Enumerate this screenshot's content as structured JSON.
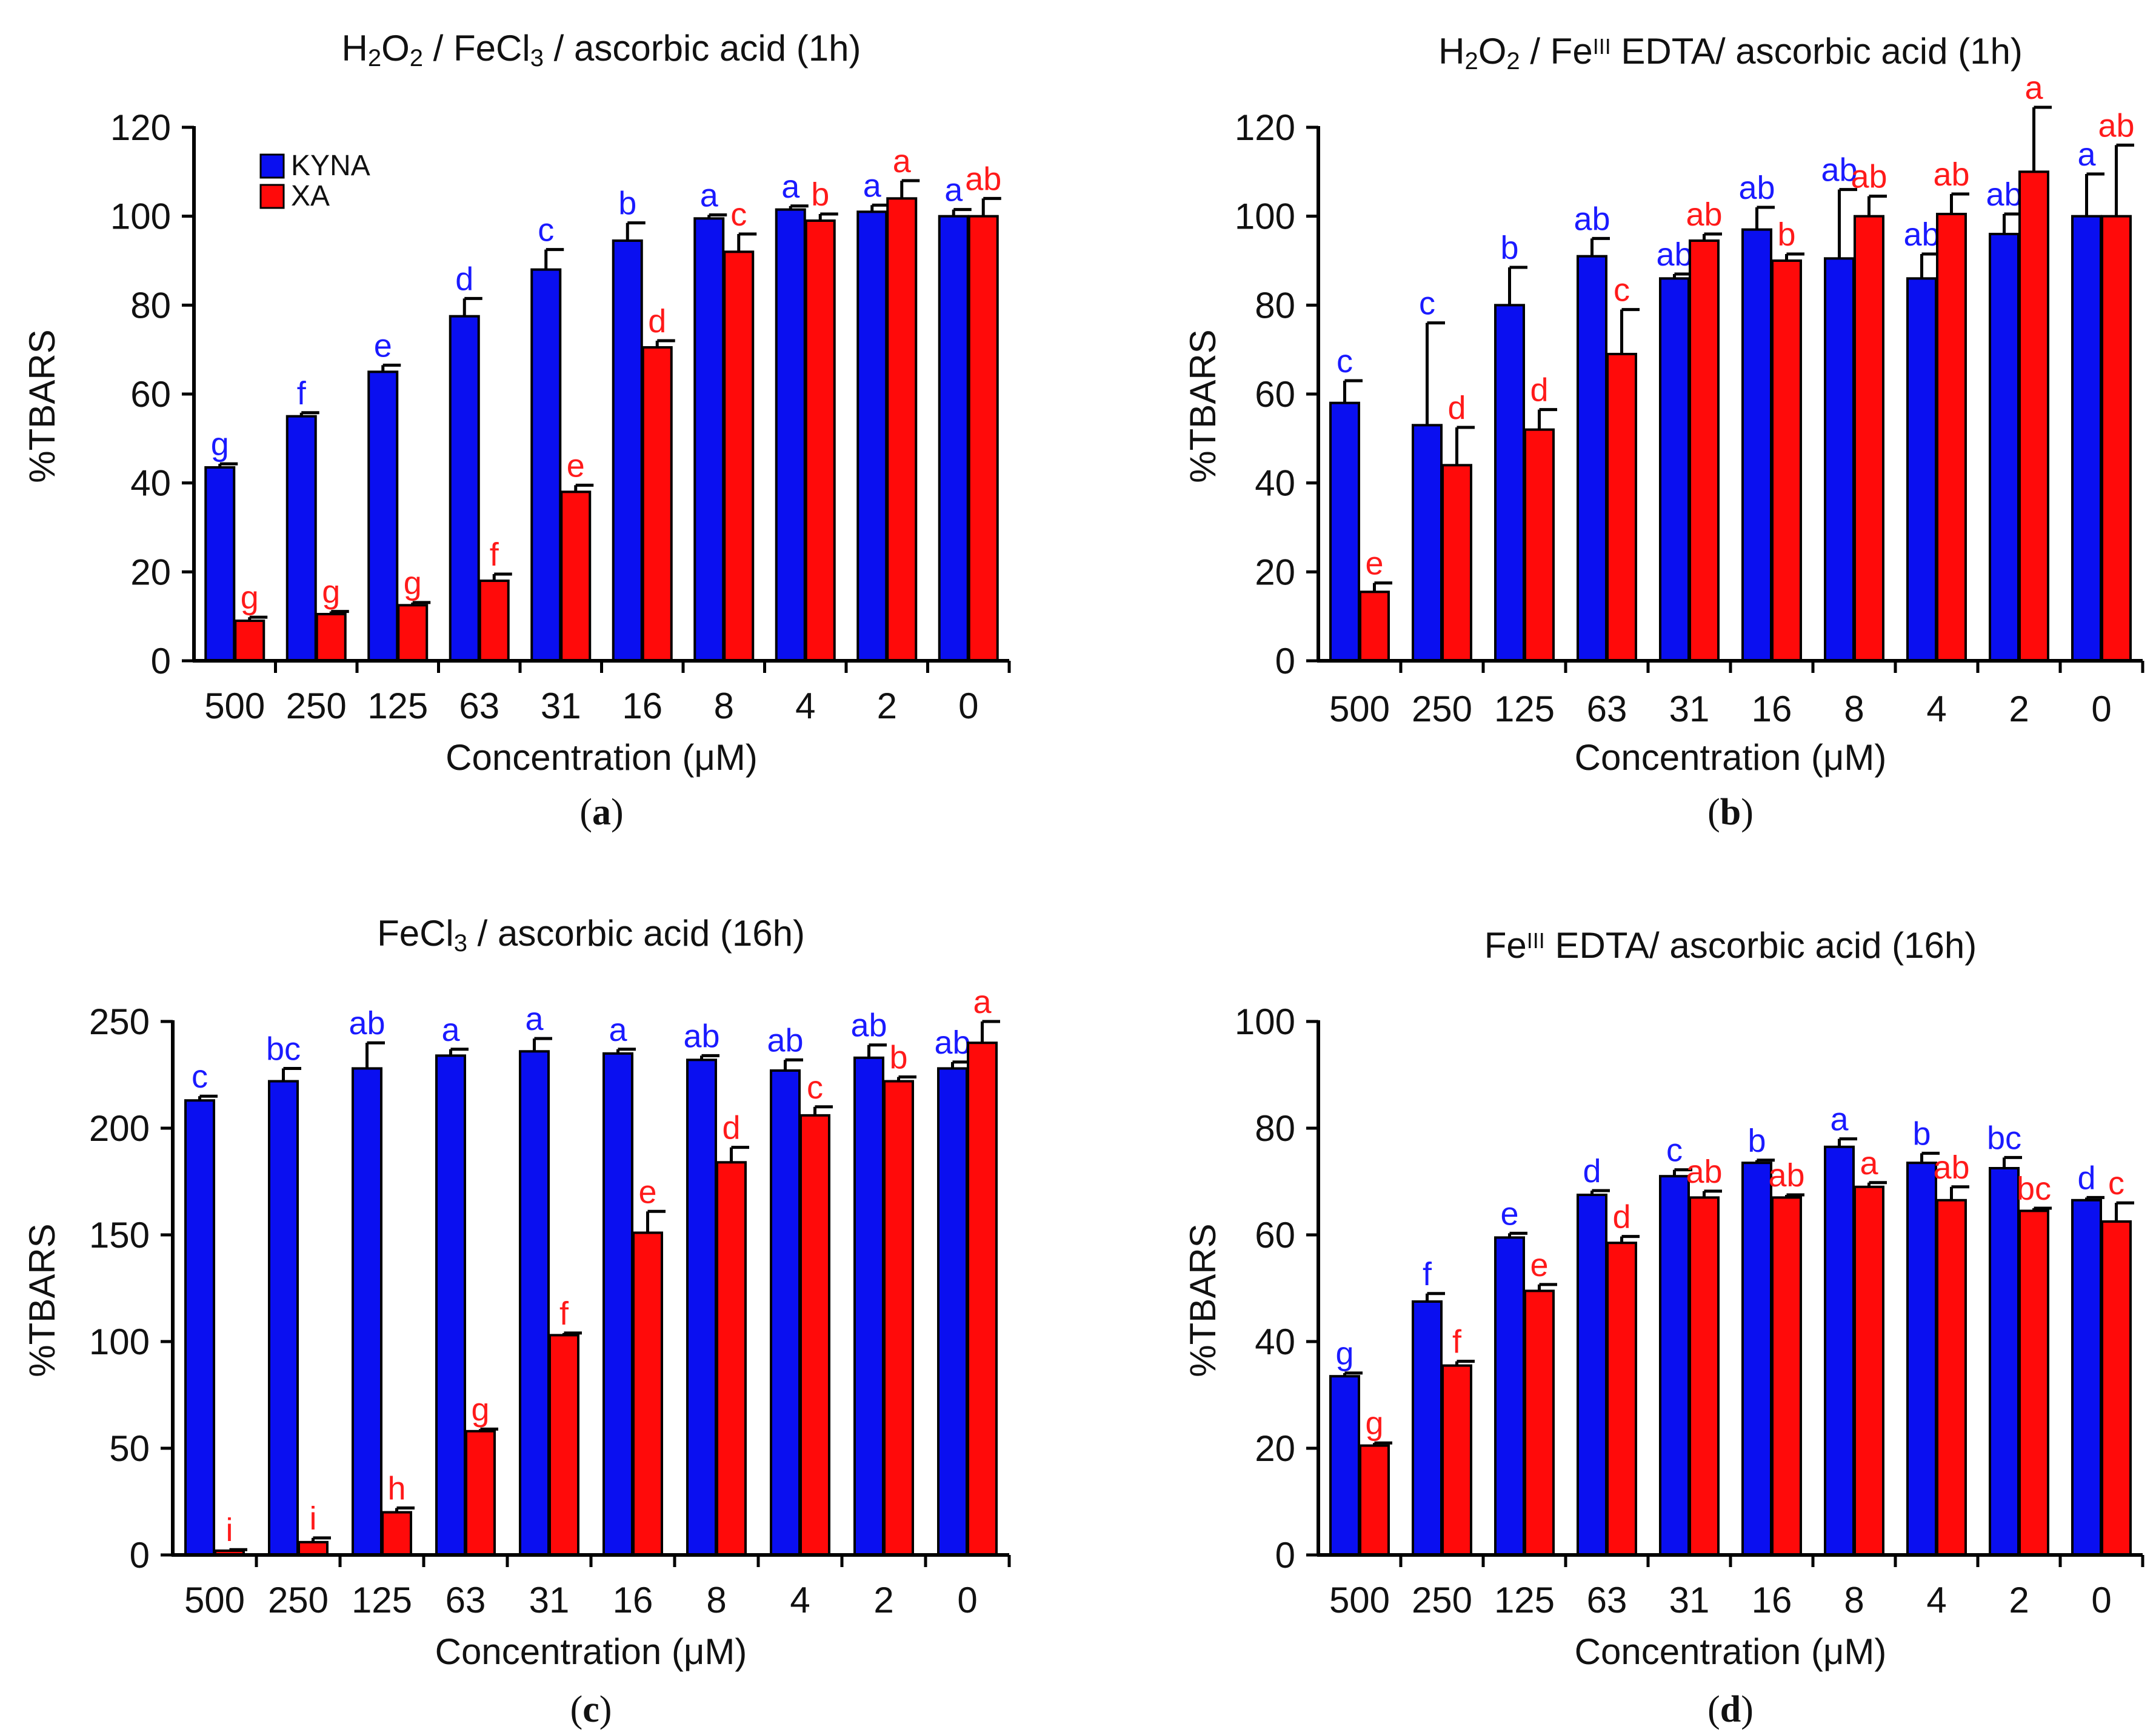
{
  "figure": {
    "colors": {
      "kyna": "#0a0ff0",
      "xa": "#ff0a0a",
      "axis": "#000000"
    },
    "legend": {
      "kyna": "KYNA",
      "xa": "XA"
    }
  },
  "chart_data": [
    {
      "type": "bar",
      "panel_label": "a",
      "title": {
        "parts": [
          {
            "t": "H"
          },
          {
            "t": "2",
            "sub": true
          },
          {
            "t": "O"
          },
          {
            "t": "2",
            "sub": true
          },
          {
            "t": " / FeCl"
          },
          {
            "t": "3",
            "sub": true
          },
          {
            "t": " / ascorbic acid (1h)"
          }
        ]
      },
      "xlabel": "Concentration (μM)",
      "ylabel": "%TBARS",
      "ylim": [
        0,
        120
      ],
      "yticks": [
        0,
        20,
        40,
        60,
        80,
        100,
        120
      ],
      "legend_shown": true,
      "categories": [
        "500",
        "250",
        "125",
        "63",
        "31",
        "16",
        "8",
        "4",
        "2",
        "0"
      ],
      "series": [
        {
          "name": "KYNA",
          "values": [
            43.5,
            55,
            65,
            77.5,
            88,
            94.5,
            99.5,
            101.5,
            101,
            100
          ],
          "errors": [
            0.8,
            0.8,
            1.5,
            4,
            4.5,
            4,
            0.8,
            0.8,
            1.5,
            1.5
          ],
          "letters": [
            "g",
            "f",
            "e",
            "d",
            "c",
            "b",
            "a",
            "a",
            "a",
            "a"
          ]
        },
        {
          "name": "XA",
          "values": [
            9,
            10.5,
            12.5,
            18,
            38,
            70.5,
            92,
            99,
            104,
            100
          ],
          "errors": [
            0.8,
            0.6,
            0.6,
            1.5,
            1.5,
            1.5,
            4,
            1.5,
            4,
            4
          ],
          "letters": [
            "g",
            "g",
            "g",
            "f",
            "e",
            "d",
            "c",
            "b",
            "a",
            "ab"
          ]
        }
      ]
    },
    {
      "type": "bar",
      "panel_label": "b",
      "title": {
        "parts": [
          {
            "t": "H"
          },
          {
            "t": "2",
            "sub": true
          },
          {
            "t": "O"
          },
          {
            "t": "2",
            "sub": true
          },
          {
            "t": " / Fe"
          },
          {
            "t": "III",
            "sup": true
          },
          {
            "t": " EDTA/ ascorbic acid (1h)"
          }
        ]
      },
      "xlabel": "Concentration (μM)",
      "ylabel": "%TBARS",
      "ylim": [
        0,
        120
      ],
      "yticks": [
        0,
        20,
        40,
        60,
        80,
        100,
        120
      ],
      "legend_shown": false,
      "categories": [
        "500",
        "250",
        "125",
        "63",
        "31",
        "16",
        "8",
        "4",
        "2",
        "0"
      ],
      "series": [
        {
          "name": "KYNA",
          "values": [
            58,
            53,
            80,
            91,
            86,
            97,
            90.5,
            86,
            96,
            100
          ],
          "errors": [
            5,
            23,
            8.5,
            4,
            1,
            5,
            15.5,
            5.5,
            4.5,
            9.5
          ],
          "letters": [
            "c",
            "c",
            "b",
            "ab",
            "ab",
            "ab",
            "ab",
            "ab",
            "ab",
            "a"
          ]
        },
        {
          "name": "XA",
          "values": [
            15.5,
            44,
            52,
            69,
            94.5,
            90,
            100,
            100.5,
            110,
            100
          ],
          "errors": [
            2,
            8.5,
            4.5,
            10,
            1.5,
            1.5,
            4.5,
            4.5,
            14.5,
            16
          ],
          "letters": [
            "e",
            "d",
            "d",
            "c",
            "ab",
            "b",
            "ab",
            "ab",
            "a",
            "ab"
          ]
        }
      ]
    },
    {
      "type": "bar",
      "panel_label": "c",
      "title": {
        "parts": [
          {
            "t": "FeCl"
          },
          {
            "t": "3",
            "sub": true
          },
          {
            "t": " / ascorbic acid (16h)"
          }
        ]
      },
      "xlabel": "Concentration (μM)",
      "ylabel": "%TBARS",
      "ylim": [
        0,
        250
      ],
      "yticks": [
        0,
        50,
        100,
        150,
        200,
        250
      ],
      "legend_shown": false,
      "categories": [
        "500",
        "250",
        "125",
        "63",
        "31",
        "16",
        "8",
        "4",
        "2",
        "0"
      ],
      "series": [
        {
          "name": "KYNA",
          "values": [
            213,
            222,
            228,
            234,
            236,
            235,
            232,
            227,
            233,
            228
          ],
          "errors": [
            2,
            6,
            12,
            3,
            6,
            2,
            2,
            5,
            6,
            3
          ],
          "letters": [
            "c",
            "bc",
            "ab",
            "a",
            "a",
            "a",
            "ab",
            "ab",
            "ab",
            "ab"
          ]
        },
        {
          "name": "XA",
          "values": [
            2,
            6,
            20,
            58,
            103,
            151,
            184,
            206,
            222,
            240
          ],
          "errors": [
            0.5,
            2,
            2,
            1,
            1,
            10,
            7,
            4,
            2,
            10
          ],
          "letters": [
            "i",
            "i",
            "h",
            "g",
            "f",
            "e",
            "d",
            "c",
            "b",
            "a"
          ]
        }
      ]
    },
    {
      "type": "bar",
      "panel_label": "d",
      "title": {
        "parts": [
          {
            "t": "Fe"
          },
          {
            "t": "III",
            "sup": true
          },
          {
            "t": " EDTA/ ascorbic acid (16h)"
          }
        ]
      },
      "xlabel": "Concentration (μM)",
      "ylabel": "%TBARS",
      "ylim": [
        0,
        100
      ],
      "yticks": [
        0,
        20,
        40,
        60,
        80,
        100
      ],
      "legend_shown": false,
      "categories": [
        "500",
        "250",
        "125",
        "63",
        "31",
        "16",
        "8",
        "4",
        "2",
        "0"
      ],
      "series": [
        {
          "name": "KYNA",
          "values": [
            33.5,
            47.5,
            59.5,
            67.5,
            71,
            73.5,
            76.5,
            73.5,
            72.5,
            66.5
          ],
          "errors": [
            0.6,
            1.5,
            0.8,
            0.8,
            1.2,
            0.5,
            1.5,
            1.8,
            2,
            0.5
          ],
          "letters": [
            "g",
            "f",
            "e",
            "d",
            "c",
            "b",
            "a",
            "b",
            "bc",
            "d"
          ]
        },
        {
          "name": "XA",
          "values": [
            20.5,
            35.5,
            49.5,
            58.5,
            67,
            67,
            69,
            66.5,
            64.5,
            62.5
          ],
          "errors": [
            0.5,
            0.8,
            1.2,
            1.2,
            1.2,
            0.5,
            0.8,
            2.5,
            0.5,
            3.5
          ],
          "letters": [
            "g",
            "f",
            "e",
            "d",
            "ab",
            "ab",
            "a",
            "ab",
            "bc",
            "c"
          ]
        }
      ]
    }
  ]
}
